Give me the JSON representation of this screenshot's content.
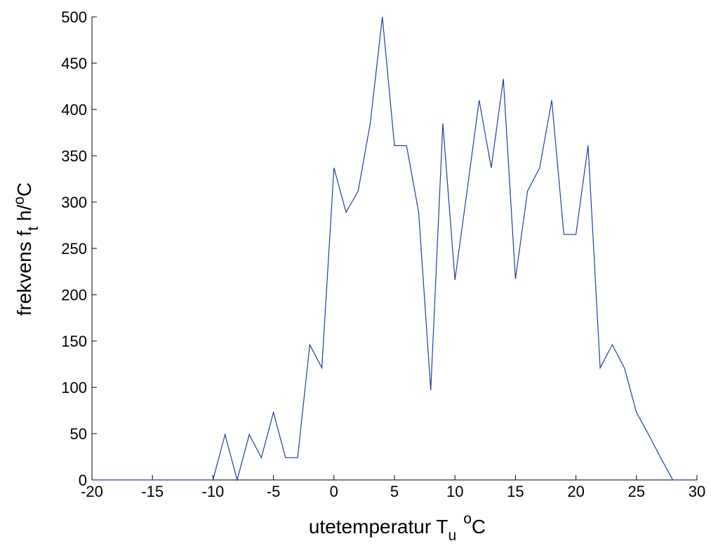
{
  "chart_data": {
    "type": "line",
    "title": "",
    "xlabel": {
      "main": "utetemperatur  T",
      "sub": "u",
      "sup": "o",
      "unit": "C"
    },
    "ylabel": {
      "main": "frekvens f",
      "sub": "t",
      "mid": " h/",
      "sup": "o",
      "unit": "C"
    },
    "xlim": [
      -20,
      30
    ],
    "ylim": [
      0,
      500
    ],
    "xticks": [
      -20,
      -15,
      -10,
      -5,
      0,
      5,
      10,
      15,
      20,
      25,
      30
    ],
    "yticks": [
      0,
      50,
      100,
      150,
      200,
      250,
      300,
      350,
      400,
      450,
      500
    ],
    "grid": false,
    "series": [
      {
        "color": "#1f3e9e",
        "x": [
          -20,
          -19,
          -18,
          -17,
          -16,
          -15,
          -14,
          -13,
          -12,
          -11,
          -10,
          -9,
          -8,
          -7,
          -6,
          -5,
          -4,
          -3,
          -2,
          -1,
          0,
          1,
          2,
          3,
          4,
          5,
          6,
          7,
          8,
          9,
          10,
          11,
          12,
          13,
          14,
          15,
          16,
          17,
          18,
          19,
          20,
          21,
          22,
          23,
          24,
          25,
          26,
          27,
          28,
          29
        ],
        "y": [
          0,
          0,
          0,
          0,
          0,
          0,
          0,
          0,
          0,
          0,
          0,
          49,
          0,
          49,
          24,
          73,
          24,
          24,
          146,
          121,
          337,
          289,
          312,
          385,
          500,
          361,
          361,
          289,
          97,
          385,
          216,
          312,
          410,
          337,
          433,
          217,
          312,
          337,
          410,
          265,
          265,
          361,
          121,
          146,
          121,
          73,
          49,
          24,
          0,
          0
        ]
      }
    ]
  }
}
